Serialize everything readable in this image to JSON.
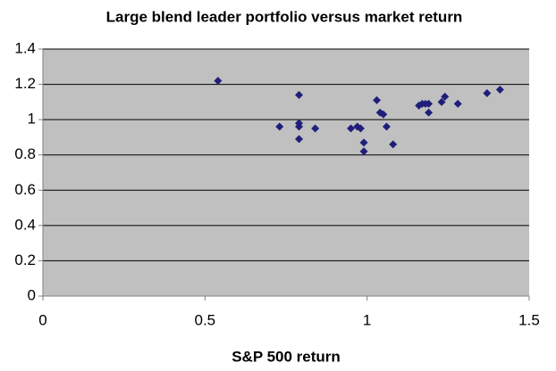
{
  "chart_data": {
    "type": "scatter",
    "title": "Large blend leader portfolio versus market return",
    "x_label": "S&P 500 return",
    "x": [
      0.54,
      0.79,
      0.73,
      0.79,
      0.79,
      0.79,
      0.84,
      0.95,
      0.97,
      0.98,
      0.99,
      0.99,
      1.03,
      1.04,
      1.05,
      1.06,
      1.08,
      1.16,
      1.17,
      1.18,
      1.19,
      1.19,
      1.23,
      1.24,
      1.28,
      1.37,
      1.41
    ],
    "values": [
      1.22,
      1.14,
      0.96,
      0.98,
      0.96,
      0.89,
      0.95,
      0.95,
      0.96,
      0.95,
      0.87,
      0.82,
      1.11,
      1.04,
      1.03,
      0.96,
      0.86,
      1.08,
      1.09,
      1.09,
      1.04,
      1.09,
      1.1,
      1.13,
      1.09,
      1.15,
      1.17
    ],
    "color": "#1f1f7a",
    "xlim": [
      0,
      1.5
    ],
    "xticks": [
      0,
      0.5,
      1,
      1.5
    ],
    "ylim": [
      0,
      1.4
    ],
    "yticks": [
      0,
      0.2,
      0.4,
      0.6,
      0.8,
      1,
      1.2,
      1.4
    ],
    "grid": true
  }
}
